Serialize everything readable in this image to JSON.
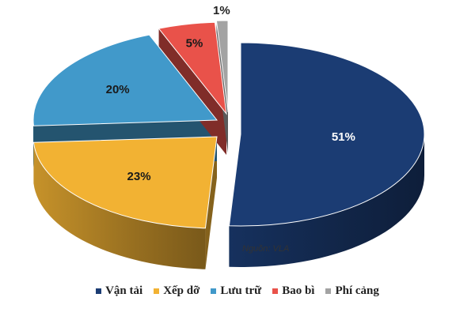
{
  "chart_data": {
    "type": "pie",
    "style": "3d-exploded",
    "categories": [
      "Vận tải",
      "Xếp dỡ",
      "Lưu trữ",
      "Bao bì",
      "Phí cảng"
    ],
    "values": [
      51,
      23,
      20,
      5,
      1
    ],
    "labels": [
      "51%",
      "23%",
      "20%",
      "5%",
      "1%"
    ],
    "colors": [
      "#1b3c73",
      "#f2b233",
      "#4199ca",
      "#e9524a",
      "#a3a3a3"
    ],
    "legend_position": "bottom",
    "source": "Nguồn: VLA"
  }
}
